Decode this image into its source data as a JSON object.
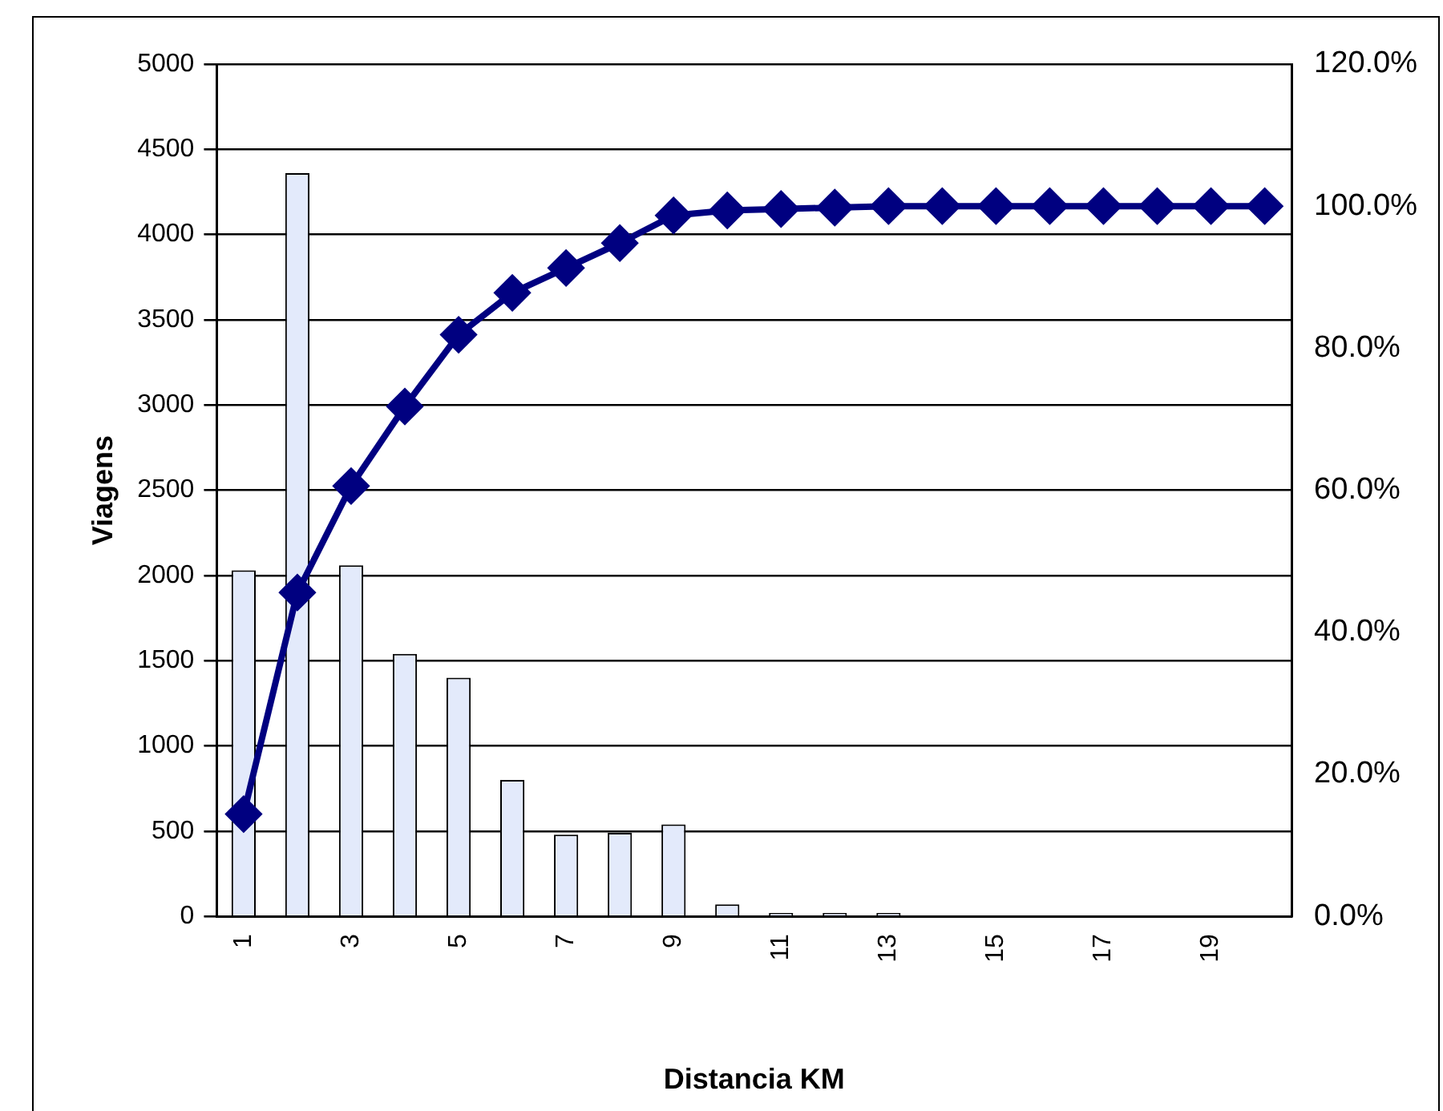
{
  "chart_data": {
    "type": "bar",
    "xlabel": "Distancia KM",
    "ylabel": "Viagens",
    "categories": [
      "1",
      null,
      "3",
      null,
      "5",
      null,
      "7",
      null,
      "9",
      null,
      "11",
      null,
      "13",
      null,
      "15",
      null,
      "17",
      null,
      "19",
      null
    ],
    "series": [
      {
        "color": "#e3eafb",
        "values": [
          2030,
          4360,
          2060,
          1540,
          1400,
          800,
          480,
          490,
          540,
          70,
          20,
          20,
          20,
          0,
          0,
          0,
          0,
          0,
          0,
          0
        ]
      },
      {
        "type": "line",
        "axis": "y2",
        "color": "#000080",
        "values": [
          14.4,
          45.6,
          60.6,
          71.8,
          81.9,
          87.8,
          91.3,
          94.8,
          98.7,
          99.4,
          99.6,
          99.8,
          100,
          100,
          100,
          100,
          100,
          100,
          100,
          100
        ]
      }
    ],
    "ylim": [
      0,
      5000
    ],
    "yticks": [
      0,
      500,
      1000,
      1500,
      2000,
      2500,
      3000,
      3500,
      4000,
      4500,
      5000
    ],
    "y2lim": [
      0,
      120
    ],
    "y2ticks": [
      {
        "value": 0,
        "label": "0.0%"
      },
      {
        "value": 20,
        "label": "20.0%"
      },
      {
        "value": 40,
        "label": "40.0%"
      },
      {
        "value": 60,
        "label": "60.0%"
      },
      {
        "value": 80,
        "label": "80.0%"
      },
      {
        "value": 100,
        "label": "100.0%"
      },
      {
        "value": 120,
        "label": "120.0%"
      }
    ],
    "grid": "y",
    "legend": false,
    "marker": "diamond",
    "line_style": "solid"
  }
}
